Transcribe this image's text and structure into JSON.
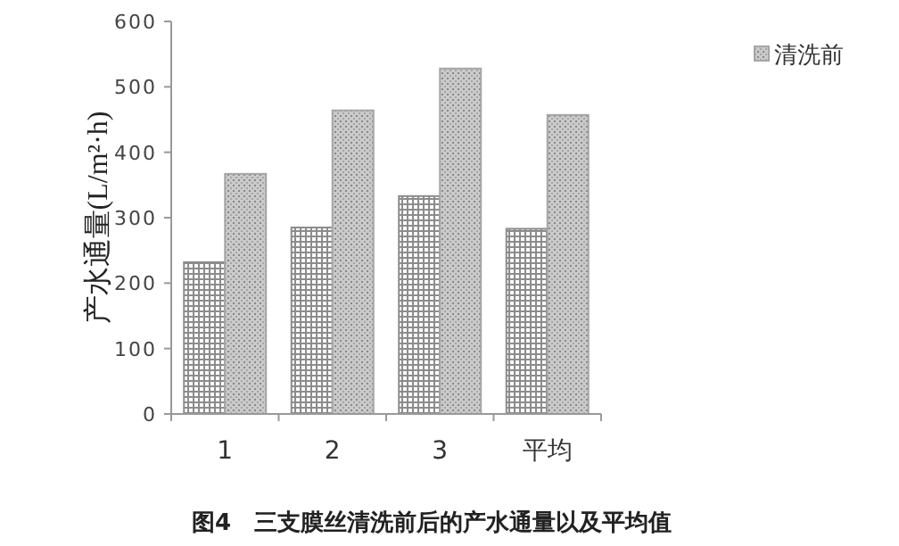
{
  "chart_data": {
    "type": "bar",
    "title": "图4　三支膜丝清洗前后的产水通量以及平均值",
    "ylabel": "产水通量(L/m²·h)",
    "categories": [
      "1",
      "2",
      "3",
      "平均"
    ],
    "series": [
      {
        "color": "#8c8c8c",
        "values": [
          232,
          285,
          333,
          283
        ]
      },
      {
        "name": "清洗前",
        "color": "#a6a6a6",
        "values": [
          367,
          464,
          528,
          457
        ]
      }
    ],
    "ylim": [
      0,
      600
    ],
    "yticks": [
      0,
      100,
      200,
      300,
      400,
      500,
      600
    ],
    "grid": false,
    "legend": "top right"
  }
}
